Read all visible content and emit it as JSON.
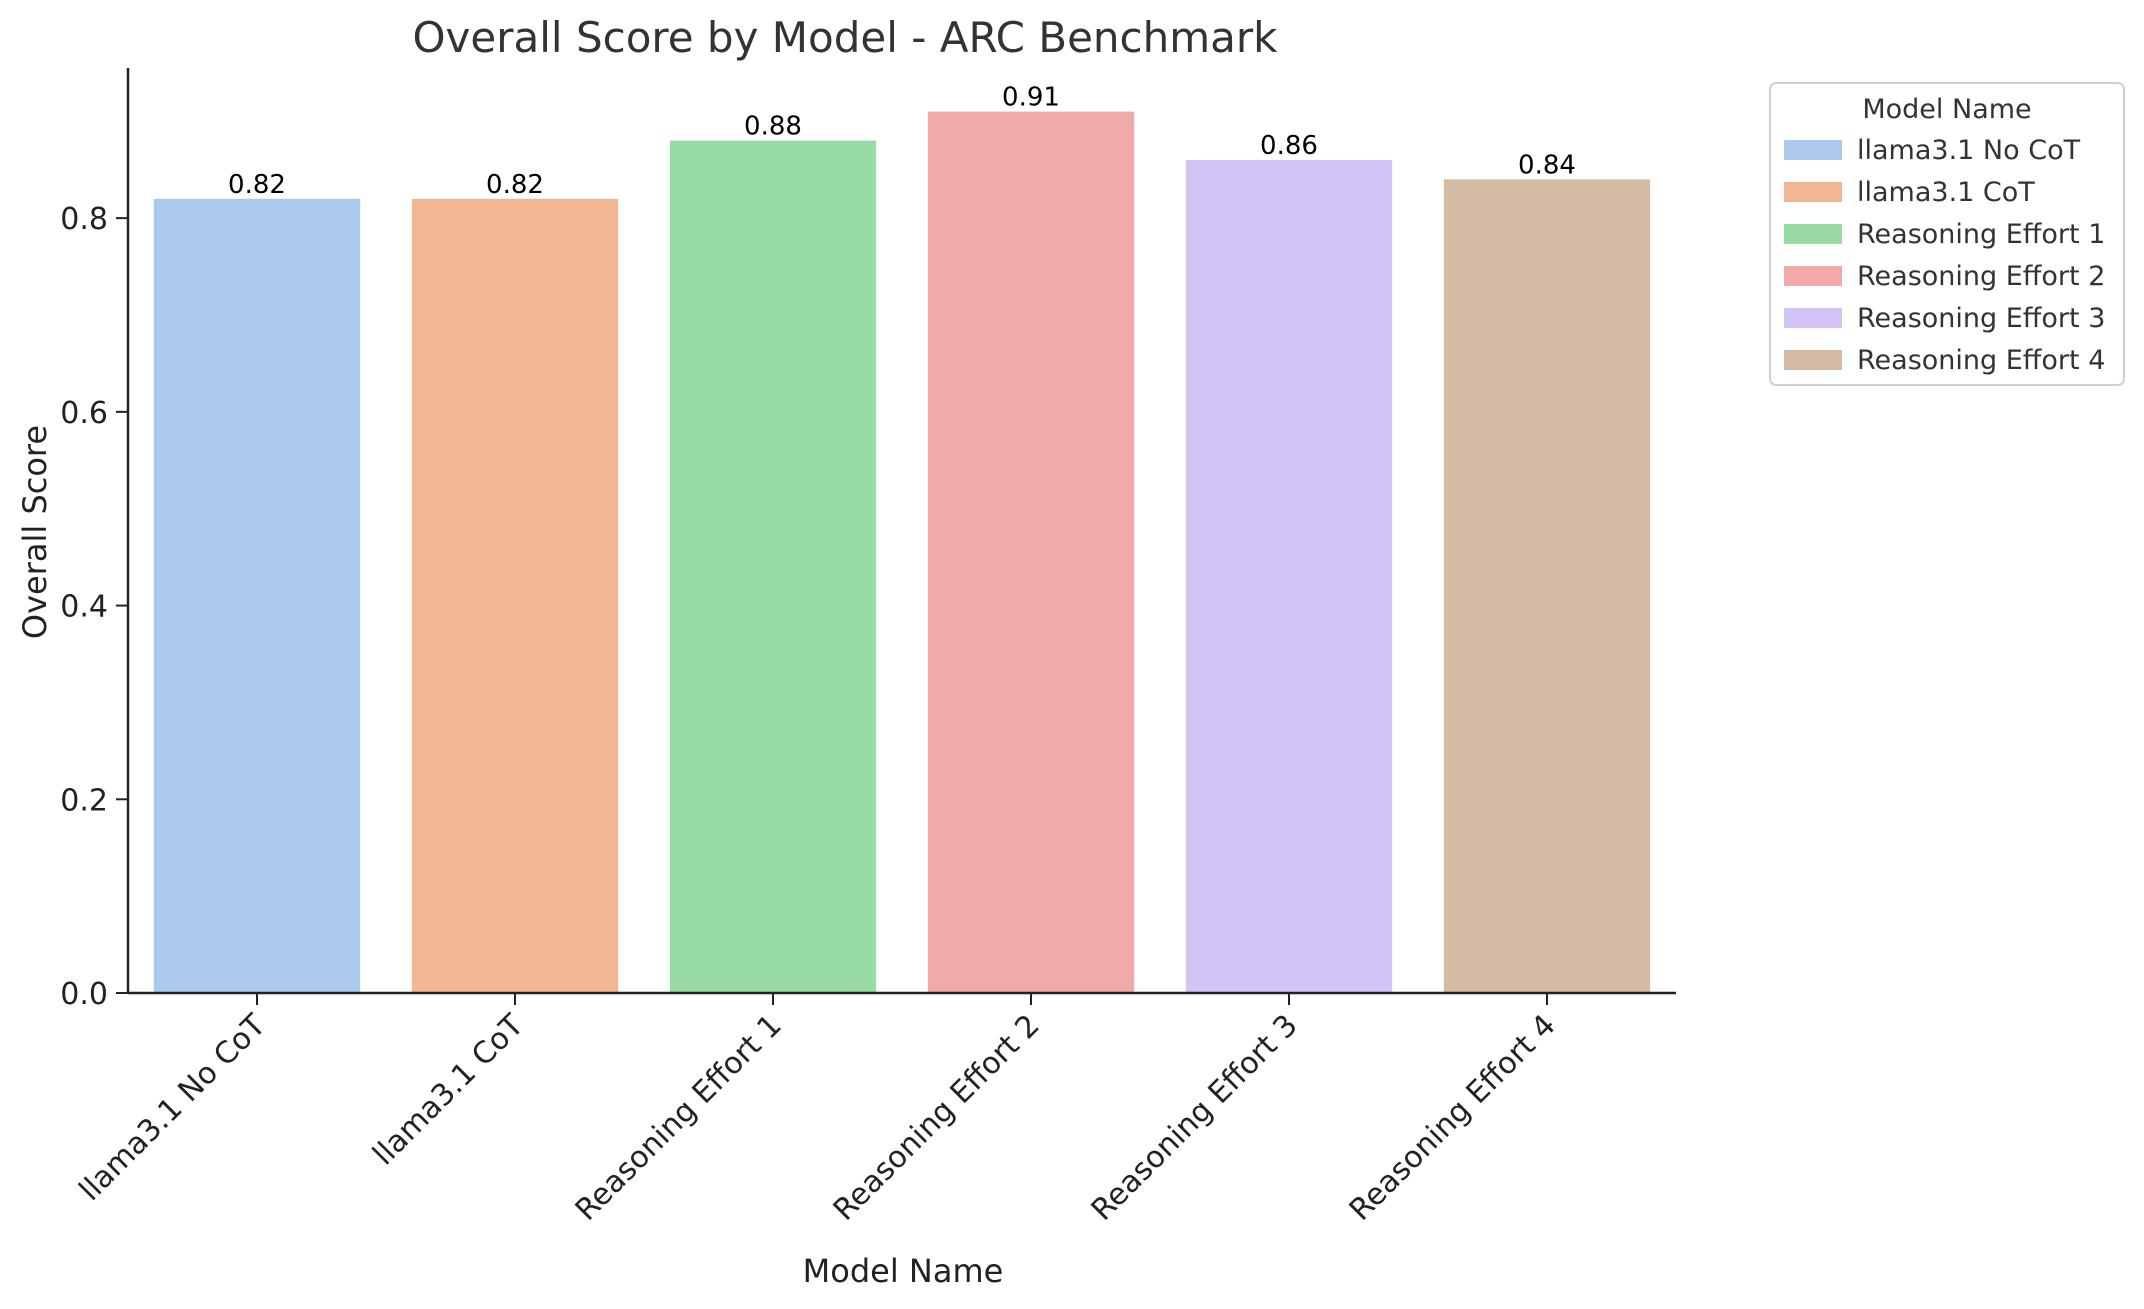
{
  "chart_data": {
    "type": "bar",
    "title": "Overall Score by Model - ARC Benchmark",
    "xlabel": "Model Name",
    "ylabel": "Overall Score",
    "categories": [
      "llama3.1 No CoT",
      "llama3.1 CoT",
      "Reasoning Effort 1",
      "Reasoning Effort 2",
      "Reasoning Effort 3",
      "Reasoning Effort 4"
    ],
    "values": [
      0.82,
      0.82,
      0.88,
      0.91,
      0.86,
      0.84
    ],
    "value_labels": [
      "0.82",
      "0.82",
      "0.88",
      "0.91",
      "0.86",
      "0.84"
    ],
    "colors": [
      "#abc9ed",
      "#f0b792",
      "#99dba7",
      "#f2a9a9",
      "#d3c4f6",
      "#d5bba3"
    ],
    "ylim": [
      0,
      0.955
    ],
    "yticks": [
      0.0,
      0.2,
      0.4,
      0.6,
      0.8
    ],
    "ytick_labels": [
      "0.0",
      "0.2",
      "0.4",
      "0.6",
      "0.8"
    ],
    "grid": false,
    "legend": {
      "title": "Model Name",
      "placement": "outside-top-right"
    }
  }
}
